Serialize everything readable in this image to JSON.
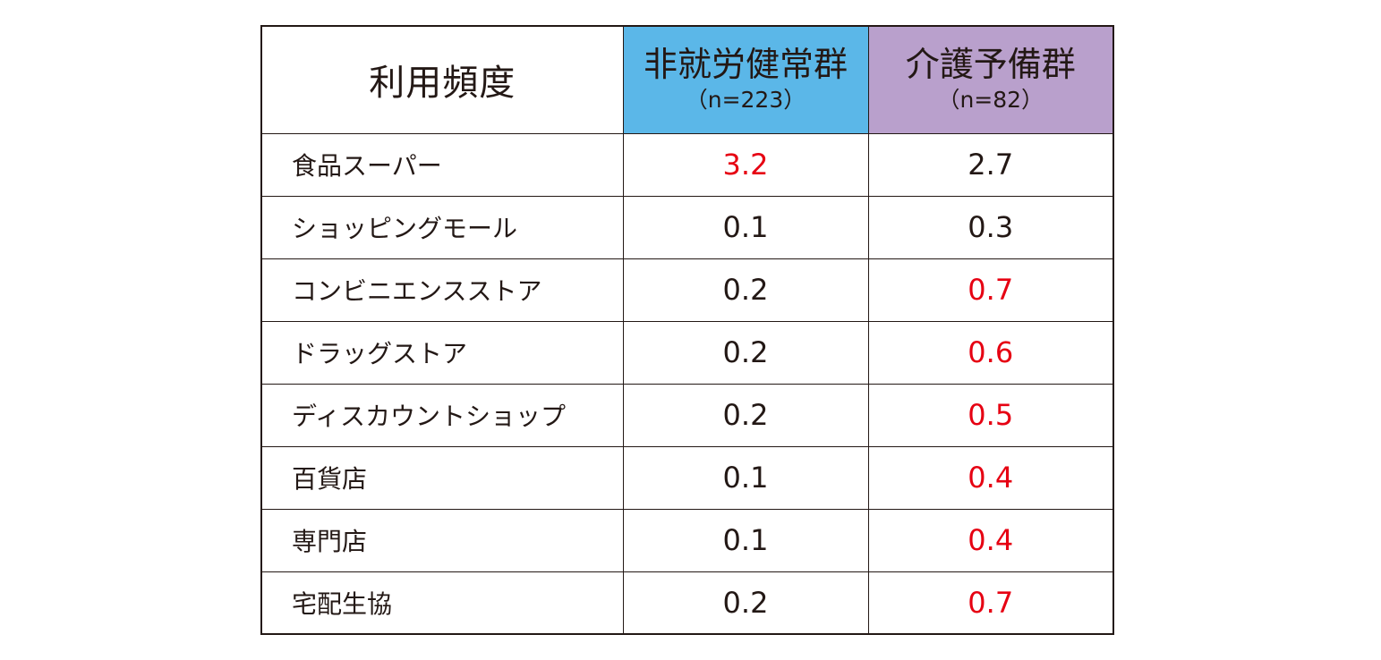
{
  "table": {
    "header": {
      "label": "利用頻度",
      "groups": [
        {
          "name": "非就労健常群",
          "n": "（n=223）",
          "bg": "#5bb7e8"
        },
        {
          "name": "介護予備群",
          "n": "（n=82）",
          "bg": "#b9a0cc"
        }
      ]
    },
    "colors": {
      "text": "#231815",
      "highlight": "#e60012"
    },
    "rows": [
      {
        "label": "食品スーパー",
        "values": [
          "3.2",
          "2.7"
        ],
        "highlight": [
          true,
          false
        ]
      },
      {
        "label": "ショッピングモール",
        "values": [
          "0.1",
          "0.3"
        ],
        "highlight": [
          false,
          false
        ]
      },
      {
        "label": "コンビニエンスストア",
        "values": [
          "0.2",
          "0.7"
        ],
        "highlight": [
          false,
          true
        ]
      },
      {
        "label": "ドラッグストア",
        "values": [
          "0.2",
          "0.6"
        ],
        "highlight": [
          false,
          true
        ]
      },
      {
        "label": "ディスカウントショップ",
        "values": [
          "0.2",
          "0.5"
        ],
        "highlight": [
          false,
          true
        ]
      },
      {
        "label": "百貨店",
        "values": [
          "0.1",
          "0.4"
        ],
        "highlight": [
          false,
          true
        ]
      },
      {
        "label": "専門店",
        "values": [
          "0.1",
          "0.4"
        ],
        "highlight": [
          false,
          true
        ]
      },
      {
        "label": "宅配生協",
        "values": [
          "0.2",
          "0.7"
        ],
        "highlight": [
          false,
          true
        ]
      }
    ]
  }
}
